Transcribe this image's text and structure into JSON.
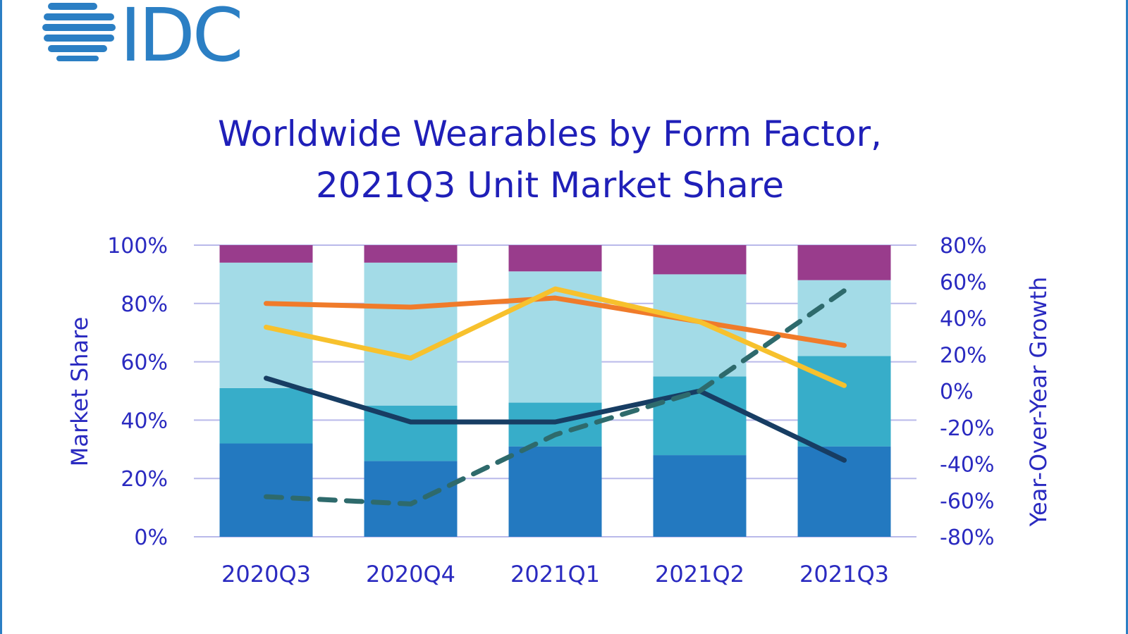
{
  "brand": {
    "logo_text": "IDC",
    "color": "#2b7fc4"
  },
  "chart_data": {
    "type": "bar",
    "stacked": true,
    "title": [
      "Worldwide Wearables by Form Factor,",
      "2021Q3 Unit Market Share"
    ],
    "categories": [
      "2020Q3",
      "2020Q4",
      "2021Q1",
      "2021Q2",
      "2021Q3"
    ],
    "ylabel": "Market Share",
    "ylim": [
      0,
      100
    ],
    "yticks": [
      "0%",
      "20%",
      "40%",
      "60%",
      "80%",
      "100%"
    ],
    "y2label": "Year-Over-Year  Growth",
    "y2lim": [
      -80,
      80
    ],
    "y2ticks": [
      "-80%",
      "-60%",
      "-40%",
      "-20%",
      "0%",
      "20%",
      "40%",
      "60%",
      "80%"
    ],
    "grid": true,
    "bar_series": [
      {
        "color": "#2379c0",
        "values": [
          32,
          26,
          31,
          28,
          31
        ]
      },
      {
        "color": "#37adc9",
        "values": [
          19,
          19,
          15,
          27,
          31
        ]
      },
      {
        "color": "#a3dbe7",
        "values": [
          43,
          49,
          45,
          35,
          26
        ]
      },
      {
        "color": "#993c8c",
        "values": [
          6,
          6,
          9,
          10,
          12
        ]
      }
    ],
    "line_series": [
      {
        "color": "#f07b2a",
        "dash": false,
        "values": [
          48,
          46,
          51,
          38,
          25
        ]
      },
      {
        "color": "#f7c12d",
        "dash": false,
        "values": [
          35,
          18,
          56,
          38,
          3
        ]
      },
      {
        "color": "#173d63",
        "dash": false,
        "values": [
          7,
          -17,
          -17,
          0,
          -38
        ]
      },
      {
        "color": "#2e6a6c",
        "dash": true,
        "values": [
          -58,
          -62,
          -24,
          0,
          55
        ]
      }
    ]
  }
}
